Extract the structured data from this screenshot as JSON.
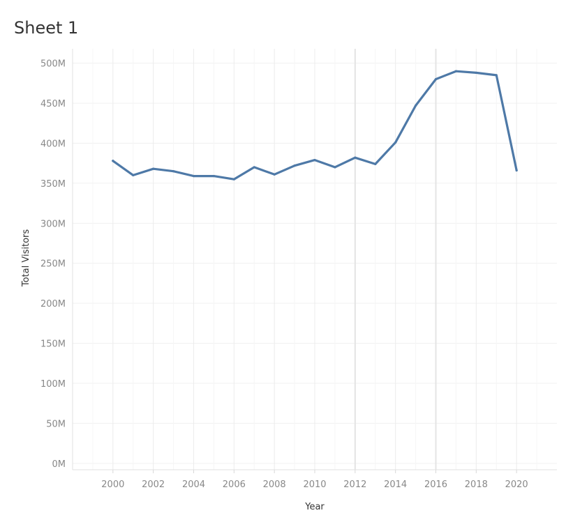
{
  "sheet_title": "Sheet 1",
  "chart_data": {
    "type": "line",
    "xlabel": "Year",
    "ylabel": "Total Visitors",
    "x_ticks": [
      "2000",
      "2002",
      "2004",
      "2006",
      "2008",
      "2010",
      "2012",
      "2014",
      "2016",
      "2018",
      "2020"
    ],
    "y_ticks": [
      "0M",
      "50M",
      "100M",
      "150M",
      "200M",
      "250M",
      "300M",
      "350M",
      "400M",
      "450M",
      "500M"
    ],
    "xlim": [
      1998,
      2022
    ],
    "ylim": [
      -8,
      518
    ],
    "grid": true,
    "series": [
      {
        "color": "#4e79a7",
        "x": [
          2000,
          2001,
          2002,
          2003,
          2004,
          2005,
          2006,
          2007,
          2008,
          2009,
          2010,
          2011,
          2012,
          2013,
          2014,
          2015,
          2016,
          2017,
          2018,
          2019,
          2020
        ],
        "values": [
          378,
          360,
          368,
          365,
          359,
          359,
          355,
          370,
          361,
          372,
          379,
          370,
          382,
          374,
          401,
          447,
          480,
          490,
          488,
          485,
          366
        ]
      }
    ]
  }
}
